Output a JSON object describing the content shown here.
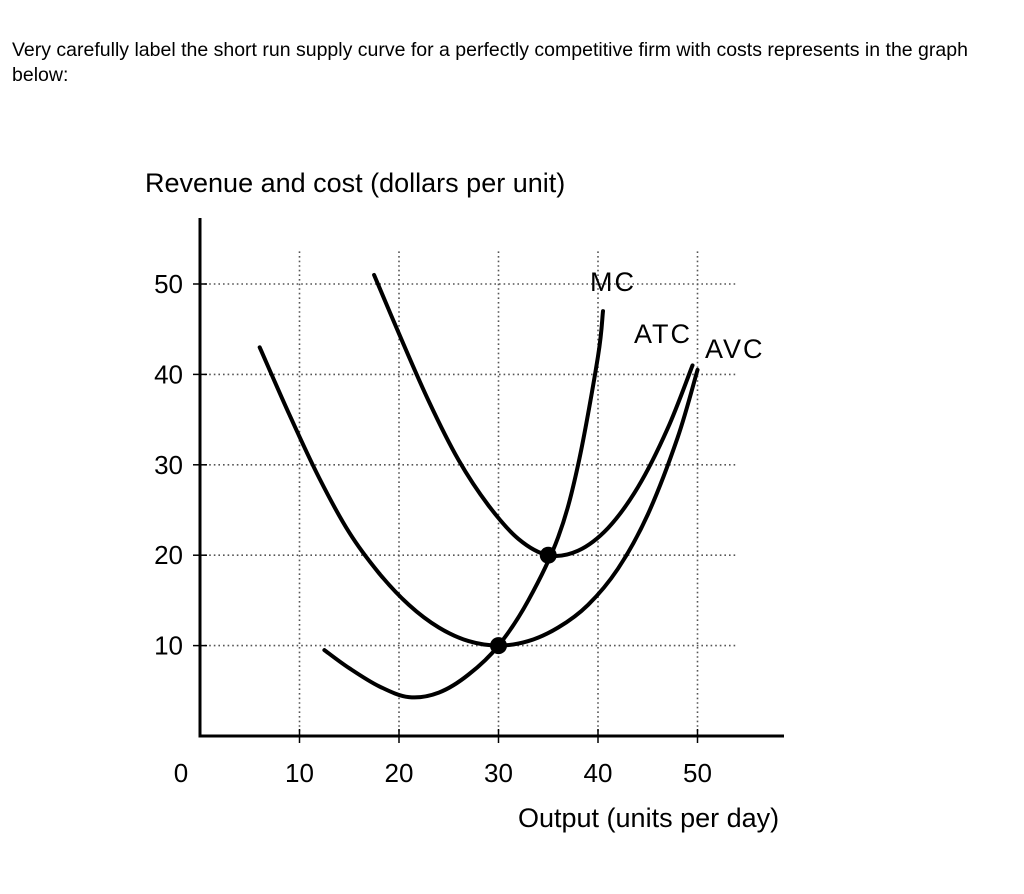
{
  "question": {
    "text": "Very carefully label the short run supply curve for a perfectly competitive firm with costs represents in the graph below:"
  },
  "chart_data": {
    "type": "line",
    "title": "",
    "ylabel": "Revenue and cost (dollars per unit)",
    "xlabel": "Output (units per day)",
    "xlim": [
      0,
      58
    ],
    "ylim": [
      0,
      55
    ],
    "x_ticks": [
      0,
      10,
      20,
      30,
      40,
      50
    ],
    "x_tick_labels": [
      "0",
      "10",
      "20",
      "30",
      "40",
      "50"
    ],
    "y_ticks": [
      10,
      20,
      30,
      40,
      50
    ],
    "y_tick_labels": [
      "10",
      "20",
      "30",
      "40",
      "50"
    ],
    "grid": "dotted",
    "series": [
      {
        "name": "MC",
        "x": [
          12.5,
          15,
          18,
          21,
          24,
          27,
          30,
          33,
          36,
          38,
          40,
          40.5
        ],
        "y": [
          9.5,
          7.5,
          5.5,
          4.3,
          4.8,
          6.8,
          10,
          15,
          22,
          30,
          42,
          47
        ]
      },
      {
        "name": "ATC",
        "x": [
          17.5,
          20,
          23,
          26,
          29,
          32,
          35,
          38,
          41,
          44,
          47,
          49.5
        ],
        "y": [
          51,
          44.5,
          37,
          30.5,
          25.5,
          21.8,
          20,
          20.5,
          23,
          27.5,
          34,
          41
        ]
      },
      {
        "name": "AVC",
        "x": [
          6,
          9,
          12,
          15,
          18,
          21,
          24,
          27,
          30,
          33,
          36,
          39,
          42,
          45,
          48,
          50
        ],
        "y": [
          43,
          35.5,
          28.5,
          22.5,
          18,
          14.5,
          12,
          10.5,
          10,
          10.5,
          12,
          14.5,
          18.5,
          24.5,
          33,
          40.5
        ]
      }
    ],
    "points": [
      {
        "x": 30,
        "y": 10
      },
      {
        "x": 35,
        "y": 20
      }
    ],
    "colors": {
      "line": "#000000",
      "grid": "#555555"
    }
  }
}
